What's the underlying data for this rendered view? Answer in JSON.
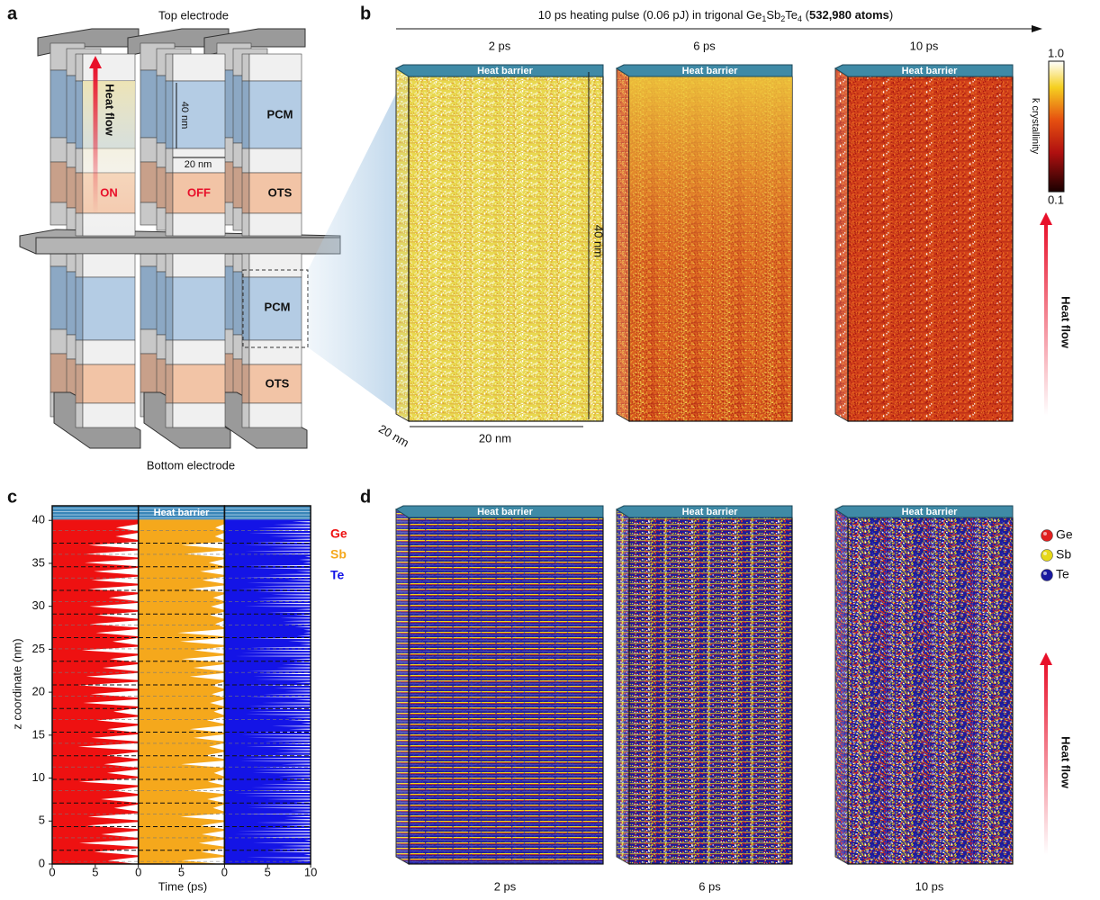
{
  "panel_a": {
    "label": "a",
    "top_electrode": "Top electrode",
    "bottom_electrode": "Bottom electrode",
    "heat_flow": "Heat flow",
    "height": "40 nm",
    "width": "20 nm",
    "pcm_labels": [
      "PCM",
      "PCM"
    ],
    "ots_labels": [
      "OTS",
      "OTS"
    ],
    "on": "ON",
    "off": "OFF"
  },
  "panel_b": {
    "label": "b",
    "title": {
      "text": "10 ps heating pulse (0.06 pJ) in trigonal Ge",
      "sub1": "1",
      "sb": "Sb",
      "sub2": "2",
      "te": "Te",
      "sub3": "4",
      "open": " (",
      "atoms": "532,980 atoms",
      "close": ")"
    },
    "times": [
      "2 ps",
      "6 ps",
      "10 ps"
    ],
    "heat_barrier": [
      "Heat barrier",
      "Heat barrier",
      "Heat barrier"
    ],
    "height": "40 nm",
    "width": "20 nm",
    "depth": "20 nm",
    "colorbar": {
      "max": "1.0",
      "min": "0.1",
      "label": "k̄ crystallinity"
    },
    "heat_flow": "Heat flow"
  },
  "panel_c": {
    "label": "c",
    "y_label": "z coordinate (nm)",
    "x_label": "Time (ps)",
    "heat_barrier": "Heat barrier",
    "ylim": [
      0,
      41.7
    ],
    "yticks": [
      0,
      5,
      10,
      15,
      20,
      25,
      30,
      35,
      40
    ],
    "xlim": [
      0,
      10
    ],
    "xticks": [
      [
        0,
        5
      ],
      [
        0,
        5
      ],
      [
        0,
        5,
        10
      ]
    ],
    "legend": [
      {
        "name": "Ge",
        "color": "#ee1111"
      },
      {
        "name": "Sb",
        "color": "#f5a81c"
      },
      {
        "name": "Te",
        "color": "#1414e6"
      }
    ]
  },
  "panel_d": {
    "label": "d",
    "heat_barrier": [
      "Heat barrier",
      "Heat barrier",
      "Heat barrier"
    ],
    "times": [
      "2 ps",
      "6 ps",
      "10 ps"
    ],
    "legend": [
      {
        "name": "Ge",
        "color": "#e02020"
      },
      {
        "name": "Sb",
        "color": "#e6d81a"
      },
      {
        "name": "Te",
        "color": "#1a1aa0"
      }
    ],
    "heat_flow": "Heat flow"
  }
}
